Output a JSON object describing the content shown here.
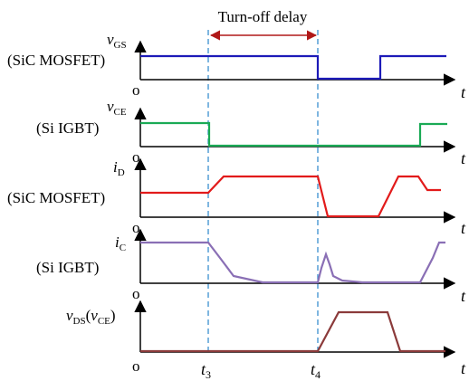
{
  "header": {
    "title": "Turn-off delay"
  },
  "colors": {
    "vgs": "#1c1ab8",
    "vce": "#1aaa55",
    "id": "#e21b1b",
    "ic": "#8a6fb5",
    "vds": "#8b3a3a",
    "marker": "#3a8fd0",
    "arrow": "#b01818",
    "axis": "#000000"
  },
  "panels": [
    {
      "sym": "v",
      "sub": "GS",
      "device": "(SiC MOSFET)",
      "origin": "o",
      "t": "t"
    },
    {
      "sym": "v",
      "sub": "CE",
      "device": "(Si IGBT)",
      "origin": "o",
      "t": "t"
    },
    {
      "sym": "i",
      "sub": "D",
      "device": "(SiC MOSFET)",
      "origin": "o",
      "t": "t"
    },
    {
      "sym": "i",
      "sub": "C",
      "device": "(Si IGBT)",
      "origin": "o",
      "t": "t"
    },
    {
      "sym1": "v",
      "sub1": "DS",
      "paren_open": "(",
      "sym2": "v",
      "sub2": "CE",
      "paren_close": ")",
      "origin": "o",
      "t": "t"
    }
  ],
  "time_markers": [
    {
      "sym": "t",
      "sub": "3"
    },
    {
      "sym": "t",
      "sub": "4"
    }
  ]
}
